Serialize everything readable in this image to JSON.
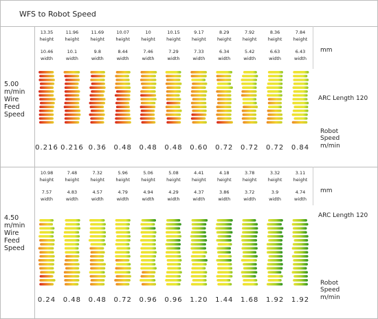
{
  "title": "WFS to Robot Speed",
  "height_label": "height",
  "width_label": "width",
  "unit_label": "mm",
  "arc_label": "ARC Length 120",
  "speed_label": "Robot Speed m/min",
  "sections": [
    {
      "wfs_label": "5.00 m/min Wire Feed Speed",
      "heights": [
        "13.35",
        "11.96",
        "11.69",
        "10.07",
        "10",
        "10.15",
        "9.17",
        "8.29",
        "7.92",
        "8.36",
        "7.84"
      ],
      "widths": [
        "10.46",
        "10.1",
        "9.8",
        "8.44",
        "7.46",
        "7.29",
        "7.33",
        "6.34",
        "5.42",
        "6.63",
        "6.43"
      ],
      "speeds": [
        "0.216",
        "0.216",
        "0.36",
        "0.48",
        "0.48",
        "0.48",
        "0.60",
        "0.72",
        "0.72",
        "0.72",
        "0.84"
      ]
    },
    {
      "wfs_label": "4.50 m/min Wire Feed Speed",
      "heights": [
        "10.98",
        "7.48",
        "7.32",
        "5.96",
        "5.06",
        "5.08",
        "4.41",
        "4.18",
        "3.78",
        "3.32",
        "3.11"
      ],
      "widths": [
        "7.57",
        "4.83",
        "4.57",
        "4.79",
        "4.94",
        "4.29",
        "4.37",
        "3.86",
        "3.72",
        "3.9",
        "4.74"
      ],
      "speeds": [
        "0.24",
        "0.48",
        "0.48",
        "0.72",
        "0.96",
        "0.96",
        "1.20",
        "1.44",
        "1.68",
        "1.92",
        "1.92"
      ]
    }
  ]
}
